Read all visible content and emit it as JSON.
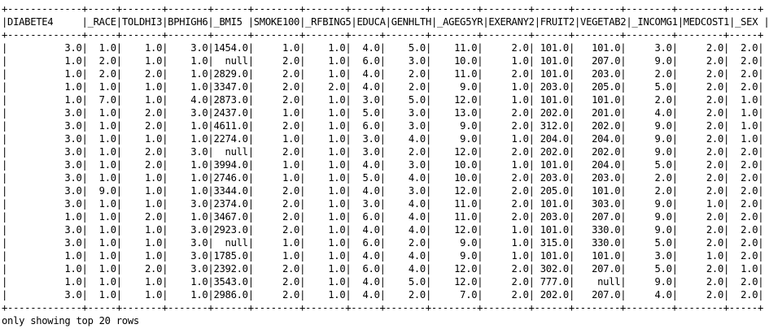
{
  "table": {
    "border": "+-------------+-----+-------+-------+------+--------+-------+-----+-------+--------+--------+------+--------+--------+--------+-----+",
    "columns": [
      "DIABETE4",
      "_RACE",
      "TOLDHI3",
      "BPHIGH6",
      "_BMI5",
      "SMOKE100",
      "_RFBING5",
      "EDUCA",
      "GENHLTH",
      "_AGEG5YR",
      "EXERANY2",
      "FRUIT2",
      "VEGETAB2",
      "_INCOMG1",
      "MEDCOST1",
      "_SEX"
    ],
    "rows": [
      [
        "3.0",
        "1.0",
        "1.0",
        "3.0",
        "1454.0",
        "1.0",
        "1.0",
        "4.0",
        "5.0",
        "11.0",
        "2.0",
        "101.0",
        "101.0",
        "3.0",
        "2.0",
        "2.0"
      ],
      [
        "1.0",
        "2.0",
        "1.0",
        "1.0",
        "null",
        "2.0",
        "1.0",
        "6.0",
        "3.0",
        "10.0",
        "1.0",
        "101.0",
        "207.0",
        "9.0",
        "2.0",
        "2.0"
      ],
      [
        "1.0",
        "2.0",
        "2.0",
        "1.0",
        "2829.0",
        "2.0",
        "1.0",
        "4.0",
        "2.0",
        "11.0",
        "2.0",
        "101.0",
        "203.0",
        "2.0",
        "2.0",
        "2.0"
      ],
      [
        "1.0",
        "1.0",
        "1.0",
        "1.0",
        "3347.0",
        "2.0",
        "2.0",
        "4.0",
        "2.0",
        "9.0",
        "1.0",
        "203.0",
        "205.0",
        "5.0",
        "2.0",
        "2.0"
      ],
      [
        "1.0",
        "7.0",
        "1.0",
        "4.0",
        "2873.0",
        "2.0",
        "1.0",
        "3.0",
        "5.0",
        "12.0",
        "1.0",
        "101.0",
        "101.0",
        "2.0",
        "2.0",
        "1.0"
      ],
      [
        "3.0",
        "1.0",
        "2.0",
        "3.0",
        "2437.0",
        "1.0",
        "1.0",
        "5.0",
        "3.0",
        "13.0",
        "2.0",
        "202.0",
        "201.0",
        "4.0",
        "2.0",
        "1.0"
      ],
      [
        "3.0",
        "1.0",
        "2.0",
        "1.0",
        "4611.0",
        "2.0",
        "1.0",
        "6.0",
        "3.0",
        "9.0",
        "2.0",
        "312.0",
        "202.0",
        "9.0",
        "2.0",
        "1.0"
      ],
      [
        "3.0",
        "1.0",
        "1.0",
        "1.0",
        "2274.0",
        "1.0",
        "1.0",
        "3.0",
        "4.0",
        "9.0",
        "1.0",
        "204.0",
        "204.0",
        "9.0",
        "2.0",
        "1.0"
      ],
      [
        "3.0",
        "1.0",
        "2.0",
        "3.0",
        "null",
        "2.0",
        "1.0",
        "3.0",
        "2.0",
        "12.0",
        "2.0",
        "202.0",
        "202.0",
        "9.0",
        "2.0",
        "2.0"
      ],
      [
        "3.0",
        "1.0",
        "2.0",
        "1.0",
        "3994.0",
        "1.0",
        "1.0",
        "4.0",
        "3.0",
        "10.0",
        "1.0",
        "101.0",
        "204.0",
        "5.0",
        "2.0",
        "2.0"
      ],
      [
        "3.0",
        "1.0",
        "1.0",
        "1.0",
        "2746.0",
        "1.0",
        "1.0",
        "5.0",
        "4.0",
        "10.0",
        "2.0",
        "203.0",
        "203.0",
        "2.0",
        "2.0",
        "2.0"
      ],
      [
        "3.0",
        "9.0",
        "1.0",
        "1.0",
        "3344.0",
        "2.0",
        "1.0",
        "4.0",
        "3.0",
        "12.0",
        "2.0",
        "205.0",
        "101.0",
        "2.0",
        "2.0",
        "2.0"
      ],
      [
        "3.0",
        "1.0",
        "1.0",
        "3.0",
        "2374.0",
        "2.0",
        "1.0",
        "3.0",
        "4.0",
        "11.0",
        "2.0",
        "101.0",
        "303.0",
        "9.0",
        "1.0",
        "2.0"
      ],
      [
        "1.0",
        "1.0",
        "2.0",
        "1.0",
        "3467.0",
        "2.0",
        "1.0",
        "6.0",
        "4.0",
        "11.0",
        "2.0",
        "203.0",
        "207.0",
        "9.0",
        "2.0",
        "2.0"
      ],
      [
        "3.0",
        "1.0",
        "1.0",
        "3.0",
        "2923.0",
        "2.0",
        "1.0",
        "4.0",
        "4.0",
        "12.0",
        "1.0",
        "101.0",
        "330.0",
        "9.0",
        "2.0",
        "2.0"
      ],
      [
        "3.0",
        "1.0",
        "1.0",
        "3.0",
        "null",
        "1.0",
        "1.0",
        "6.0",
        "2.0",
        "9.0",
        "1.0",
        "315.0",
        "330.0",
        "5.0",
        "2.0",
        "2.0"
      ],
      [
        "1.0",
        "1.0",
        "1.0",
        "3.0",
        "1785.0",
        "1.0",
        "1.0",
        "4.0",
        "4.0",
        "9.0",
        "1.0",
        "101.0",
        "101.0",
        "3.0",
        "1.0",
        "2.0"
      ],
      [
        "1.0",
        "1.0",
        "2.0",
        "3.0",
        "2392.0",
        "2.0",
        "1.0",
        "6.0",
        "4.0",
        "12.0",
        "2.0",
        "302.0",
        "207.0",
        "5.0",
        "2.0",
        "1.0"
      ],
      [
        "1.0",
        "1.0",
        "1.0",
        "1.0",
        "3543.0",
        "2.0",
        "1.0",
        "4.0",
        "5.0",
        "12.0",
        "2.0",
        "777.0",
        "null",
        "9.0",
        "2.0",
        "2.0"
      ],
      [
        "3.0",
        "1.0",
        "1.0",
        "1.0",
        "2986.0",
        "2.0",
        "1.0",
        "4.0",
        "2.0",
        "7.0",
        "2.0",
        "202.0",
        "207.0",
        "4.0",
        "2.0",
        "2.0"
      ]
    ]
  },
  "footer": "only showing top 20 rows"
}
